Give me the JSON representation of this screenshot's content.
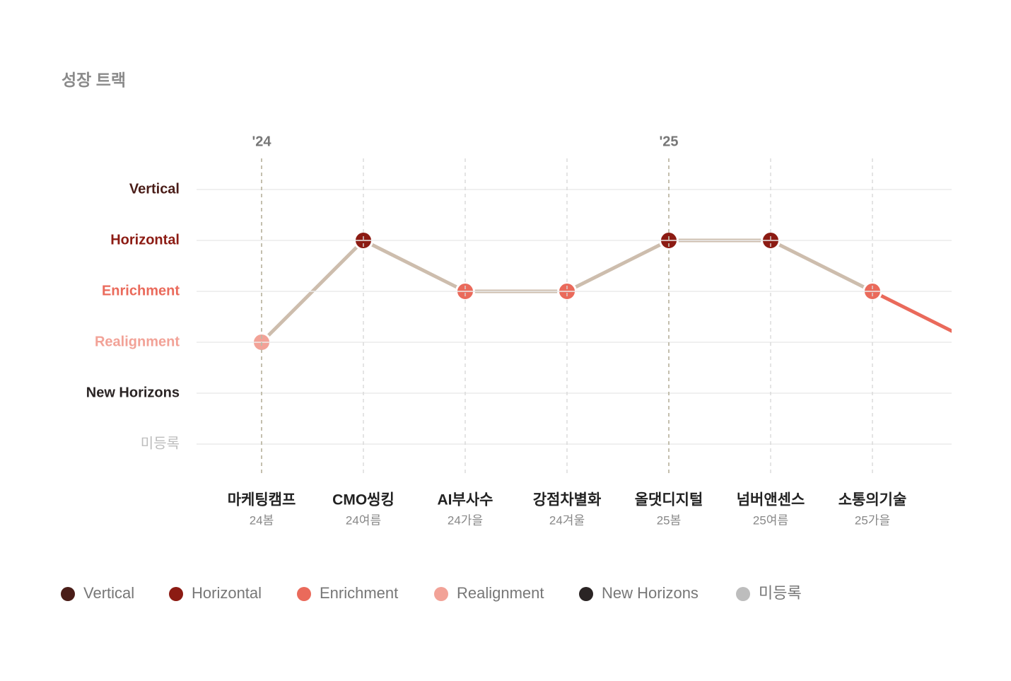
{
  "chart_data": {
    "type": "level-line",
    "title": "성장 트랙",
    "levels": [
      {
        "name": "Vertical",
        "color": "#4a1d18"
      },
      {
        "name": "Horizontal",
        "color": "#8c1b13"
      },
      {
        "name": "Enrichment",
        "color": "#ea6a5b"
      },
      {
        "name": "Realignment",
        "color": "#f2a297"
      },
      {
        "name": "New Horizons",
        "color": "#2a2424"
      },
      {
        "name": "미등록",
        "color": "#bdbdbd"
      }
    ],
    "categories": [
      "마케팅캠프",
      "CMO씽킹",
      "AI부사수",
      "강점차별화",
      "올댓디지털",
      "넘버앤센스",
      "소통의기술",
      null
    ],
    "terms": [
      "24봄",
      "24여름",
      "24가을",
      "24겨울",
      "25봄",
      "25여름",
      "25가을",
      null
    ],
    "years": [
      "'24",
      null,
      null,
      null,
      "'25",
      null,
      null,
      null
    ],
    "values": [
      "Realignment",
      "Horizontal",
      "Enrichment",
      "Enrichment",
      "Horizontal",
      "Horizontal",
      "Enrichment",
      "Realignment"
    ],
    "line_color": "#cdbdad",
    "open_segment_color": "#ea6a5b",
    "grid": true
  }
}
